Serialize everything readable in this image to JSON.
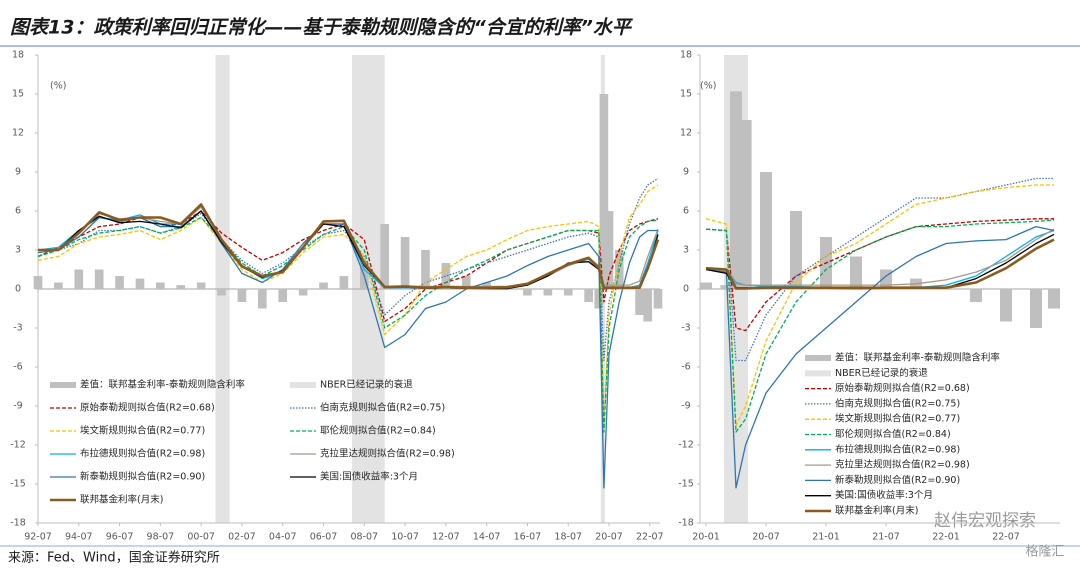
{
  "title": "图表13：政策利率回归正常化——基于泰勒规则隐含的“合宜的利率”水平",
  "source": "来源：Fed、Wind，国金证券研究所",
  "watermarks": [
    "赵伟宏观探索",
    "格隆汇"
  ],
  "chart_data": [
    {
      "type": "line",
      "y_label": "(%)",
      "legend_layout": "two-column",
      "x": [
        1992.5,
        1993.5,
        1994.5,
        1995.5,
        1996.5,
        1997.5,
        1998.5,
        1999.5,
        2000.5,
        2001.5,
        2002.5,
        2003.5,
        2004.5,
        2005.5,
        2006.5,
        2007.5,
        2008.5,
        2009.5,
        2010.5,
        2011.5,
        2012.5,
        2013.5,
        2014.5,
        2015.5,
        2016.5,
        2017.5,
        2018.5,
        2019.5,
        2020.0,
        2020.25,
        2020.5,
        2021.0,
        2021.5,
        2022.0,
        2022.4,
        2022.9
      ],
      "xlim": [
        1992.5,
        2023.0
      ],
      "xticks": [
        {
          "value": 1992.5,
          "label": "92-07"
        },
        {
          "value": 1994.5,
          "label": "94-07"
        },
        {
          "value": 1996.5,
          "label": "96-07"
        },
        {
          "value": 1998.5,
          "label": "98-07"
        },
        {
          "value": 2000.5,
          "label": "00-07"
        },
        {
          "value": 2002.5,
          "label": "02-07"
        },
        {
          "value": 2004.5,
          "label": "04-07"
        },
        {
          "value": 2006.5,
          "label": "06-07"
        },
        {
          "value": 2008.5,
          "label": "08-07"
        },
        {
          "value": 2010.5,
          "label": "10-07"
        },
        {
          "value": 2012.5,
          "label": "12-07"
        },
        {
          "value": 2014.5,
          "label": "14-07"
        },
        {
          "value": 2016.5,
          "label": "16-07"
        },
        {
          "value": 2018.5,
          "label": "18-07"
        },
        {
          "value": 2020.5,
          "label": "20-07"
        },
        {
          "value": 2022.5,
          "label": "22-07"
        }
      ],
      "ylim": [
        -18,
        18
      ],
      "yticks": [
        -18,
        -15,
        -12,
        -9,
        -6,
        -3,
        0,
        3,
        6,
        9,
        12,
        15,
        18
      ],
      "recession_name": "NBER已经记录的衰退",
      "recession_color": "#e3e3e3",
      "recessions": [
        [
          2001.2,
          2001.9
        ],
        [
          2007.9,
          2009.5
        ],
        [
          2020.1,
          2020.3
        ]
      ],
      "series": [
        {
          "name": "差值：联邦基金利率-泰勒规则隐含利率",
          "style": "bar",
          "color": "#bfbfbf",
          "values": [
            1.0,
            0.5,
            1.5,
            1.5,
            1.0,
            0.8,
            0.5,
            0.3,
            0.5,
            -0.5,
            -1.0,
            -1.5,
            -1.0,
            -0.5,
            0.5,
            1.0,
            2.0,
            5.0,
            4.0,
            3.0,
            2.0,
            1.0,
            0.5,
            0.0,
            -0.5,
            -0.5,
            -0.5,
            -1.0,
            -1.5,
            15.0,
            6.0,
            3.0,
            0.0,
            -2.0,
            -2.5,
            -1.5
          ]
        },
        {
          "name": "原始泰勒规则拟合值(R2=0.68)",
          "style": "dashed",
          "color": "#c00000",
          "values": [
            2.5,
            3.2,
            4.0,
            4.8,
            5.0,
            5.5,
            4.8,
            5.0,
            6.0,
            4.3,
            3.2,
            2.2,
            2.8,
            3.8,
            4.5,
            5.0,
            3.8,
            -2.5,
            -1.5,
            0.0,
            0.5,
            1.0,
            2.0,
            3.0,
            3.5,
            4.0,
            4.5,
            4.5,
            4.3,
            -1.0,
            1.0,
            3.0,
            4.5,
            5.0,
            5.2,
            5.4
          ]
        },
        {
          "name": "伯南克规则拟合值(R2=0.75)",
          "style": "dotted",
          "color": "#4472c4",
          "values": [
            2.5,
            3.0,
            3.5,
            4.5,
            4.5,
            4.8,
            4.3,
            4.8,
            5.8,
            3.8,
            2.2,
            1.2,
            2.0,
            3.2,
            4.2,
            4.5,
            2.5,
            -2.0,
            -0.5,
            0.5,
            1.0,
            1.5,
            2.0,
            2.5,
            3.0,
            3.5,
            4.0,
            4.3,
            4.0,
            -5.5,
            -1.0,
            2.0,
            5.0,
            7.0,
            8.0,
            8.5
          ]
        },
        {
          "name": "埃文斯规则拟合值(R2=0.77)",
          "style": "dashed",
          "color": "#ffc000",
          "values": [
            2.2,
            2.5,
            3.5,
            4.0,
            4.2,
            4.5,
            3.8,
            4.5,
            5.5,
            3.5,
            1.5,
            0.5,
            1.2,
            2.8,
            4.0,
            4.2,
            2.5,
            -3.5,
            -2.0,
            0.5,
            1.5,
            2.5,
            3.0,
            3.8,
            4.5,
            4.8,
            5.0,
            5.2,
            4.8,
            -10.5,
            -2.0,
            2.5,
            5.5,
            6.5,
            7.5,
            8.0
          ]
        },
        {
          "name": "耶伦规则拟合值(R2=0.84)",
          "style": "dashed",
          "color": "#00b050",
          "values": [
            2.5,
            3.0,
            3.8,
            4.3,
            4.5,
            4.8,
            4.3,
            4.7,
            5.5,
            3.8,
            2.0,
            1.0,
            1.8,
            3.0,
            4.2,
            4.8,
            3.0,
            -3.0,
            -2.0,
            -0.5,
            0.5,
            1.5,
            2.2,
            3.0,
            3.5,
            4.0,
            4.5,
            4.5,
            4.5,
            -11,
            -3.0,
            1.5,
            4.0,
            4.8,
            5.2,
            5.3
          ]
        },
        {
          "name": "布拉德规则拟合值(R2=0.98)",
          "style": "solid",
          "color": "#00b0f0",
          "values": [
            3.0,
            3.2,
            4.5,
            5.5,
            5.3,
            5.7,
            5.0,
            5.0,
            6.5,
            3.8,
            1.8,
            0.8,
            1.3,
            3.2,
            5.0,
            5.0,
            1.5,
            0.1,
            0.1,
            0.1,
            0.1,
            0.1,
            0.1,
            0.1,
            0.3,
            1.1,
            1.8,
            2.3,
            1.6,
            0.2,
            0.1,
            0.1,
            0.1,
            0.3,
            2.0,
            4.5
          ]
        },
        {
          "name": "克拉里达规则拟合值(R2=0.98)",
          "style": "solid",
          "color": "#a6998a",
          "values": [
            3.0,
            3.0,
            4.3,
            5.8,
            5.4,
            5.5,
            5.2,
            5.0,
            6.3,
            3.8,
            1.8,
            1.0,
            1.3,
            3.2,
            5.0,
            5.0,
            2.0,
            0.2,
            0.2,
            0.2,
            0.2,
            0.2,
            0.2,
            0.2,
            0.4,
            1.0,
            1.8,
            2.4,
            1.8,
            0.3,
            0.3,
            0.3,
            0.3,
            0.6,
            2.5,
            4.6
          ]
        },
        {
          "name": "新泰勒规则拟合值(R2=0.90)",
          "style": "solid",
          "color": "#2e75b6",
          "values": [
            2.8,
            3.0,
            4.0,
            5.5,
            5.2,
            5.5,
            4.8,
            4.8,
            6.0,
            3.5,
            1.2,
            0.5,
            1.5,
            3.5,
            5.0,
            5.0,
            1.0,
            -4.5,
            -3.5,
            -1.5,
            -1.0,
            0.0,
            0.5,
            1.0,
            1.8,
            2.5,
            3.0,
            3.5,
            2.5,
            -15.3,
            -5.0,
            -1.0,
            2.0,
            4.0,
            4.5,
            4.5
          ]
        },
        {
          "name": "美国:国债收益率:3个月",
          "style": "solid",
          "color": "#000000",
          "values": [
            3.0,
            3.0,
            4.5,
            5.6,
            5.1,
            5.2,
            5.0,
            4.7,
            6.0,
            3.6,
            1.7,
            0.9,
            1.4,
            3.2,
            5.0,
            4.8,
            1.8,
            0.15,
            0.15,
            0.05,
            0.1,
            0.05,
            0.03,
            0.02,
            0.3,
            1.0,
            2.0,
            2.1,
            1.5,
            0.1,
            0.1,
            0.08,
            0.05,
            0.05,
            1.5,
            4.2
          ]
        },
        {
          "name": "联邦基金利率(月末)",
          "style": "bold",
          "color": "#8b5a1e",
          "values": [
            3.0,
            3.0,
            4.3,
            5.9,
            5.3,
            5.5,
            5.5,
            5.0,
            6.5,
            3.8,
            1.75,
            1.0,
            1.3,
            3.2,
            5.2,
            5.25,
            2.0,
            0.15,
            0.2,
            0.1,
            0.15,
            0.1,
            0.1,
            0.13,
            0.4,
            1.15,
            1.9,
            2.4,
            1.6,
            0.05,
            0.1,
            0.1,
            0.1,
            0.1,
            1.6,
            3.8
          ]
        }
      ]
    },
    {
      "type": "line",
      "y_label": "(%)",
      "legend_layout": "one-column",
      "x": [
        2020.0,
        2020.17,
        2020.25,
        2020.33,
        2020.5,
        2020.75,
        2021.0,
        2021.25,
        2021.5,
        2021.75,
        2022.0,
        2022.25,
        2022.5,
        2022.75,
        2022.9
      ],
      "xlim": [
        2019.95,
        2022.95
      ],
      "xticks": [
        {
          "value": 2020.0,
          "label": "20-01"
        },
        {
          "value": 2020.5,
          "label": "20-07"
        },
        {
          "value": 2021.0,
          "label": "21-01"
        },
        {
          "value": 2021.5,
          "label": "21-07"
        },
        {
          "value": 2022.0,
          "label": "22-01"
        },
        {
          "value": 2022.5,
          "label": "22-07"
        }
      ],
      "ylim": [
        -18,
        18
      ],
      "yticks": [
        -18,
        -15,
        -12,
        -9,
        -6,
        -3,
        0,
        3,
        6,
        9,
        12,
        15,
        18
      ],
      "recession_name": "NBER已经记录的衰退",
      "recession_color": "#e3e3e3",
      "recessions": [
        [
          2020.15,
          2020.35
        ]
      ],
      "series": [
        {
          "name": "差值：联邦基金利率-泰勒规则隐含利率",
          "style": "bar",
          "color": "#bfbfbf",
          "values": [
            0.5,
            0.3,
            15.2,
            13.0,
            9.0,
            6.0,
            4.0,
            2.5,
            1.5,
            0.8,
            0.2,
            -1.0,
            -2.5,
            -3.0,
            -1.5
          ]
        },
        {
          "name": "原始泰勒规则拟合值(R2=0.68)",
          "style": "dashed",
          "color": "#c00000",
          "values": [
            4.6,
            4.5,
            -3.0,
            -3.2,
            -1.0,
            1.0,
            2.0,
            3.0,
            4.0,
            4.8,
            5.0,
            5.2,
            5.3,
            5.4,
            5.4
          ]
        },
        {
          "name": "伯南克规则拟合值(R2=0.75)",
          "style": "dotted",
          "color": "#4472c4",
          "values": [
            4.6,
            4.5,
            -5.5,
            -5.5,
            -2.0,
            1.0,
            2.5,
            4.0,
            5.5,
            7.0,
            7.0,
            7.5,
            8.0,
            8.5,
            8.5
          ]
        },
        {
          "name": "埃文斯规则拟合值(R2=0.77)",
          "style": "dashed",
          "color": "#ffc000",
          "values": [
            5.4,
            5.0,
            -10.5,
            -9.0,
            -4.0,
            0.5,
            2.5,
            3.5,
            5.0,
            6.5,
            7.0,
            7.5,
            7.8,
            8.0,
            8.0
          ]
        },
        {
          "name": "耶伦规则拟合值(R2=0.84)",
          "style": "dashed",
          "color": "#00b050",
          "values": [
            4.6,
            4.5,
            -11,
            -10,
            -5.0,
            -1.0,
            1.5,
            3.0,
            4.0,
            4.8,
            4.8,
            5.0,
            5.1,
            5.2,
            5.3
          ]
        },
        {
          "name": "布拉德规则拟合值(R2=0.98)",
          "style": "solid",
          "color": "#00b0f0",
          "values": [
            1.6,
            1.5,
            0.5,
            0.3,
            0.2,
            0.2,
            0.1,
            0.1,
            0.1,
            0.1,
            0.3,
            1.0,
            2.5,
            4.0,
            4.5
          ]
        },
        {
          "name": "克拉里达规则拟合值(R2=0.98)",
          "style": "solid",
          "color": "#a6998a",
          "values": [
            1.6,
            1.4,
            0.4,
            0.3,
            0.3,
            0.3,
            0.3,
            0.3,
            0.3,
            0.4,
            0.7,
            1.3,
            2.2,
            3.8,
            4.6
          ]
        },
        {
          "name": "新泰勒规则拟合值(R2=0.90)",
          "style": "solid",
          "color": "#2e75b6",
          "values": [
            1.5,
            1.3,
            -15.3,
            -12,
            -8,
            -5,
            -3,
            -1,
            1.0,
            2.5,
            3.5,
            3.7,
            3.8,
            4.8,
            4.5
          ]
        },
        {
          "name": "美国:国债收益率:3个月",
          "style": "solid",
          "color": "#000000",
          "values": [
            1.5,
            1.2,
            0.1,
            0.1,
            0.1,
            0.1,
            0.05,
            0.03,
            0.05,
            0.05,
            0.1,
            0.8,
            2.0,
            3.5,
            4.2
          ]
        },
        {
          "name": "联邦基金利率(月末)",
          "style": "bold",
          "color": "#8b5a1e",
          "values": [
            1.6,
            1.5,
            0.05,
            0.05,
            0.1,
            0.1,
            0.1,
            0.1,
            0.1,
            0.1,
            0.1,
            0.5,
            1.6,
            3.1,
            3.8
          ]
        }
      ]
    }
  ]
}
